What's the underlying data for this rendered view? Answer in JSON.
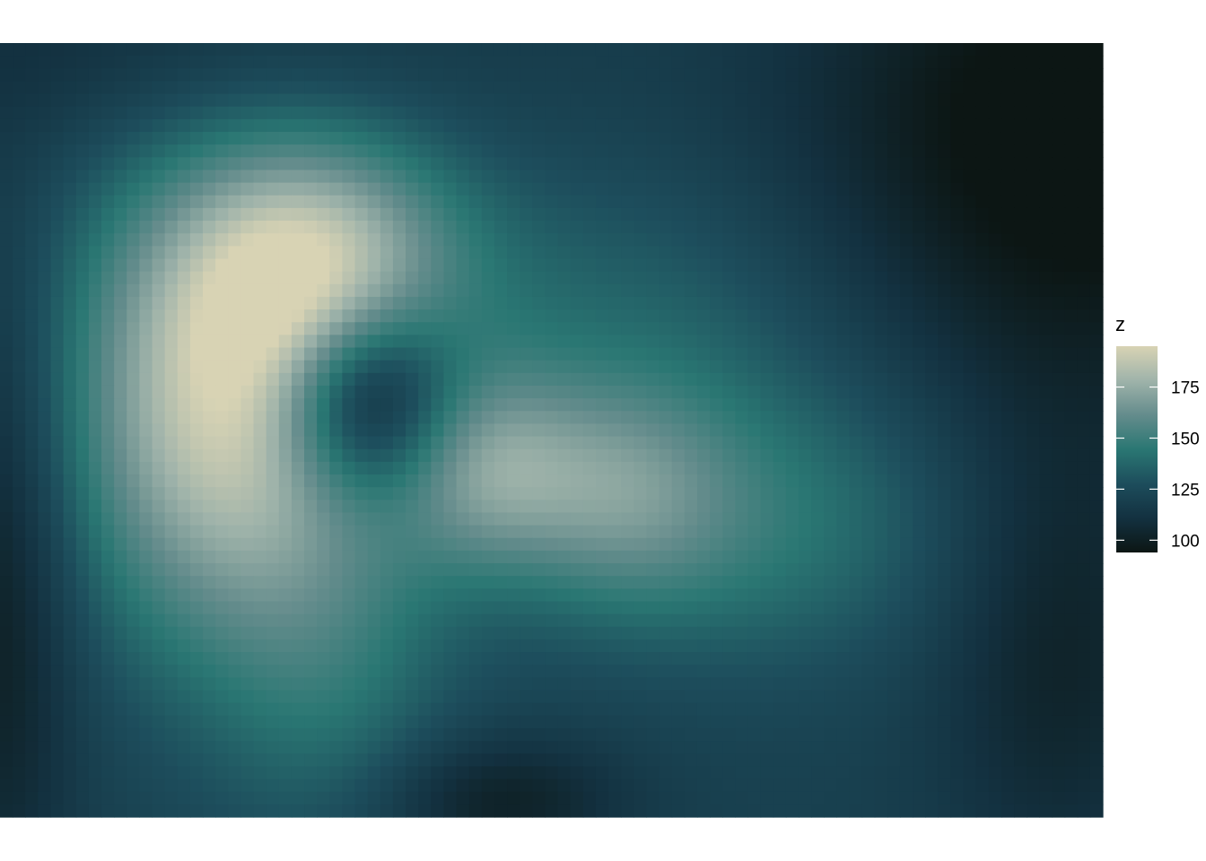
{
  "chart_data": {
    "type": "heatmap",
    "title": "",
    "xlabel": "",
    "ylabel": "",
    "colorbar": {
      "title": "z",
      "min": 94,
      "max": 195,
      "ticks": [
        100,
        125,
        150,
        175
      ],
      "tick_labels": [
        "100",
        "125",
        "150",
        "175"
      ],
      "palette": [
        "#0c1614",
        "#133140",
        "#1d4d5c",
        "#2a7773",
        "#648c8c",
        "#9fb3aa",
        "#d8d3b4"
      ]
    },
    "grid_cols": 87,
    "grid_rows": 61,
    "background_value": 120,
    "features": [
      {
        "kind": "blob",
        "x": 0.22,
        "y": 0.47,
        "sx": 0.11,
        "sy": 0.21,
        "amp": 75
      },
      {
        "kind": "blob",
        "x": 0.29,
        "y": 0.28,
        "sx": 0.09,
        "sy": 0.11,
        "amp": 40
      },
      {
        "kind": "dip",
        "x": 0.33,
        "y": 0.46,
        "sx": 0.06,
        "sy": 0.09,
        "amp": -60
      },
      {
        "kind": "blob",
        "x": 0.44,
        "y": 0.55,
        "sx": 0.06,
        "sy": 0.09,
        "amp": 35
      },
      {
        "kind": "blob",
        "x": 0.56,
        "y": 0.58,
        "sx": 0.07,
        "sy": 0.1,
        "amp": 28
      },
      {
        "kind": "blob",
        "x": 0.68,
        "y": 0.62,
        "sx": 0.14,
        "sy": 0.13,
        "amp": 25
      },
      {
        "kind": "blob",
        "x": 0.57,
        "y": 0.35,
        "sx": 0.16,
        "sy": 0.14,
        "amp": 15
      },
      {
        "kind": "blob",
        "x": 0.3,
        "y": 0.85,
        "sx": 0.08,
        "sy": 0.15,
        "amp": 15
      },
      {
        "kind": "dip",
        "x": 0.97,
        "y": 0.12,
        "sx": 0.17,
        "sy": 0.24,
        "amp": -32
      },
      {
        "kind": "dip",
        "x": 0.96,
        "y": 0.78,
        "sx": 0.08,
        "sy": 0.22,
        "amp": -18
      },
      {
        "kind": "dip",
        "x": 0.0,
        "y": 0.7,
        "sx": 0.05,
        "sy": 0.3,
        "amp": -22
      },
      {
        "kind": "dip",
        "x": 0.45,
        "y": 0.98,
        "sx": 0.08,
        "sy": 0.06,
        "amp": -20
      },
      {
        "kind": "dip",
        "x": 0.12,
        "y": 0.0,
        "sx": 0.22,
        "sy": 0.1,
        "amp": -10
      }
    ]
  }
}
